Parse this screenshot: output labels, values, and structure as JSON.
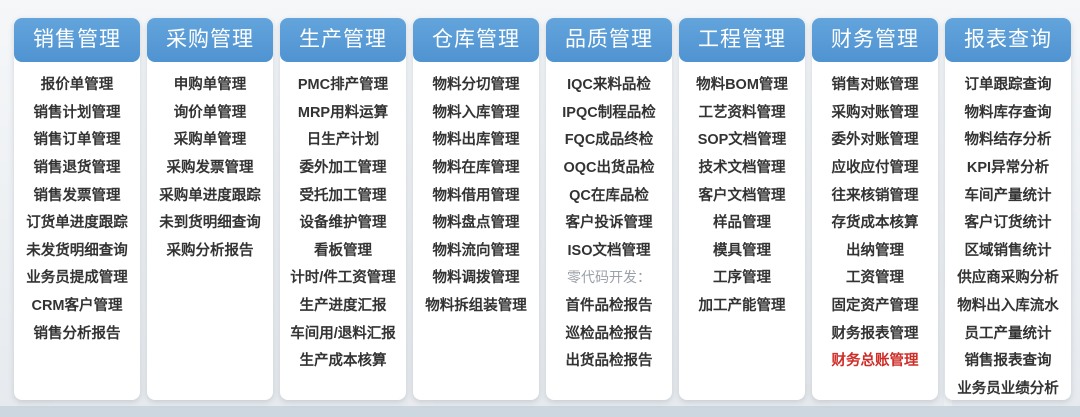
{
  "colors": {
    "header_blue": "#5596d4",
    "item_text": "#333333",
    "highlight_red": "#cf2d28",
    "muted_gray": "#9aa1a8",
    "bottom_band": "#ccd7e0",
    "card_background": "#ffffff"
  },
  "columns": [
    {
      "key": "sales",
      "title": "销售管理",
      "items": [
        {
          "label": "报价单管理"
        },
        {
          "label": "销售计划管理"
        },
        {
          "label": "销售订单管理"
        },
        {
          "label": "销售退货管理"
        },
        {
          "label": "销售发票管理"
        },
        {
          "label": "订货单进度跟踪"
        },
        {
          "label": "未发货明细查询"
        },
        {
          "label": "业务员提成管理"
        },
        {
          "label": "CRM客户管理"
        },
        {
          "label": "销售分析报告"
        }
      ]
    },
    {
      "key": "purchase",
      "title": "采购管理",
      "items": [
        {
          "label": "申购单管理"
        },
        {
          "label": "询价单管理"
        },
        {
          "label": "采购单管理"
        },
        {
          "label": "采购发票管理"
        },
        {
          "label": "采购单进度跟踪"
        },
        {
          "label": "未到货明细查询"
        },
        {
          "label": "采购分析报告"
        }
      ]
    },
    {
      "key": "production",
      "title": "生产管理",
      "items": [
        {
          "label": "PMC排产管理"
        },
        {
          "label": "MRP用料运算"
        },
        {
          "label": "日生产计划"
        },
        {
          "label": "委外加工管理"
        },
        {
          "label": "受托加工管理"
        },
        {
          "label": "设备维护管理"
        },
        {
          "label": "看板管理"
        },
        {
          "label": "计时/件工资管理"
        },
        {
          "label": "生产进度汇报"
        },
        {
          "label": "车间用/退料汇报"
        },
        {
          "label": "生产成本核算"
        }
      ]
    },
    {
      "key": "warehouse",
      "title": "仓库管理",
      "items": [
        {
          "label": "物料分切管理"
        },
        {
          "label": "物料入库管理"
        },
        {
          "label": "物料出库管理"
        },
        {
          "label": "物料在库管理"
        },
        {
          "label": "物料借用管理"
        },
        {
          "label": "物料盘点管理"
        },
        {
          "label": "物料流向管理"
        },
        {
          "label": "物料调拨管理"
        },
        {
          "label": "物料拆组装管理"
        }
      ]
    },
    {
      "key": "quality",
      "title": "品质管理",
      "items": [
        {
          "label": "IQC来料品检"
        },
        {
          "label": "IPQC制程品检"
        },
        {
          "label": "FQC成品终检"
        },
        {
          "label": "OQC出货品检"
        },
        {
          "label": "QC在库品检"
        },
        {
          "label": "客户投诉管理"
        },
        {
          "label": "ISO文档管理"
        },
        {
          "label": "零代码开发：",
          "style": "muted"
        },
        {
          "label": "首件品检报告"
        },
        {
          "label": "巡检品检报告"
        },
        {
          "label": "出货品检报告"
        }
      ]
    },
    {
      "key": "engineering",
      "title": "工程管理",
      "items": [
        {
          "label": "物料BOM管理"
        },
        {
          "label": "工艺资料管理"
        },
        {
          "label": "SOP文档管理"
        },
        {
          "label": "技术文档管理"
        },
        {
          "label": "客户文档管理"
        },
        {
          "label": "样品管理"
        },
        {
          "label": "模具管理"
        },
        {
          "label": "工序管理"
        },
        {
          "label": "加工产能管理"
        }
      ]
    },
    {
      "key": "finance",
      "title": "财务管理",
      "items": [
        {
          "label": "销售对账管理"
        },
        {
          "label": "采购对账管理"
        },
        {
          "label": "委外对账管理"
        },
        {
          "label": "应收应付管理"
        },
        {
          "label": "往来核销管理"
        },
        {
          "label": "存货成本核算"
        },
        {
          "label": "出纳管理"
        },
        {
          "label": "工资管理"
        },
        {
          "label": "固定资产管理"
        },
        {
          "label": "财务报表管理"
        },
        {
          "label": "财务总账管理",
          "style": "red"
        }
      ]
    },
    {
      "key": "reports",
      "title": "报表查询",
      "items": [
        {
          "label": "订单跟踪查询"
        },
        {
          "label": "物料库存查询"
        },
        {
          "label": "物料结存分析"
        },
        {
          "label": "KPI异常分析"
        },
        {
          "label": "车间产量统计"
        },
        {
          "label": "客户订货统计"
        },
        {
          "label": "区域销售统计"
        },
        {
          "label": "供应商采购分析"
        },
        {
          "label": "物料出入库流水"
        },
        {
          "label": "员工产量统计"
        },
        {
          "label": "销售报表查询"
        },
        {
          "label": "业务员业绩分析"
        }
      ]
    }
  ]
}
